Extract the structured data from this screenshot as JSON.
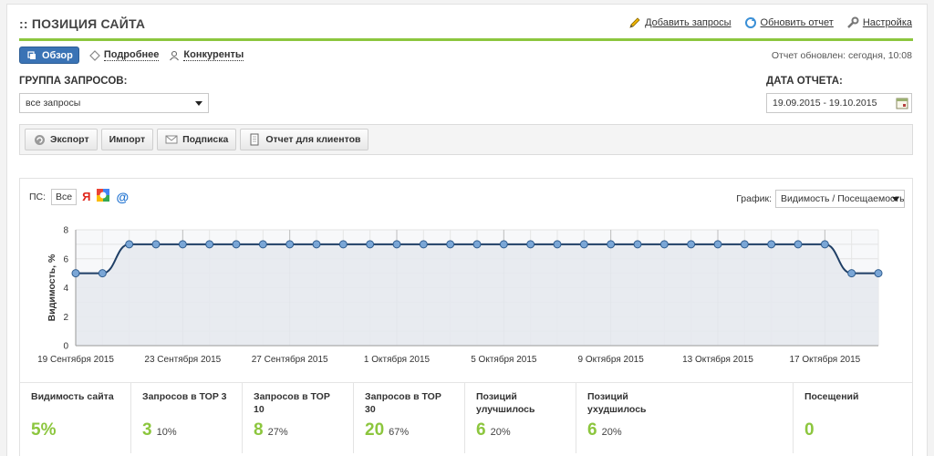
{
  "header": {
    "title": ":: ПОЗИЦИЯ САЙТА",
    "actions": [
      {
        "label": "Добавить запросы",
        "icon": "pencil-icon"
      },
      {
        "label": "Обновить отчет",
        "icon": "refresh-icon"
      },
      {
        "label": "Настройка",
        "icon": "wrench-icon"
      }
    ]
  },
  "tabs": [
    {
      "label": "Обзор",
      "active": true,
      "icon": "overview-icon"
    },
    {
      "label": "Подробнее",
      "active": false,
      "icon": "details-icon"
    },
    {
      "label": "Конкуренты",
      "active": false,
      "icon": "competitors-icon"
    }
  ],
  "report_updated": "Отчет обновлен: сегодня, 10:08",
  "filters": {
    "group_label": "ГРУППА ЗАПРОСОВ:",
    "group_value": "все запросы",
    "date_label": "ДАТА ОТЧЕТА:",
    "date_value": "19.09.2015 - 19.10.2015"
  },
  "toolbar": [
    {
      "label": "Экспорт",
      "icon": "export-icon"
    },
    {
      "label": "Импорт",
      "icon": ""
    },
    {
      "label": "Подписка",
      "icon": "mail-icon"
    },
    {
      "label": "Отчет для клиентов",
      "icon": "document-icon"
    }
  ],
  "chart_panel": {
    "ps_label": "ПС:",
    "ps_all": "Все",
    "engine_yandex": "Я",
    "engine_mail": "@",
    "graph_label": "График:",
    "graph_value": "Видимость / Посещаемость"
  },
  "chart_data": {
    "type": "line",
    "ylabel": "Видимость, %",
    "ylim": [
      0,
      8
    ],
    "yticks": [
      "0",
      "2",
      "4",
      "6",
      "8"
    ],
    "x_tick_labels": [
      "19 Сентября 2015",
      "23 Сентября 2015",
      "27 Сентября 2015",
      "1 Октября 2015",
      "5 Октября 2015",
      "9 Октября 2015",
      "13 Октября 2015",
      "17 Октября 2015"
    ],
    "series": [
      {
        "values": [
          5,
          5,
          7,
          7,
          7,
          7,
          7,
          7,
          7,
          7,
          7,
          7,
          7,
          7,
          7,
          7,
          7,
          7,
          7,
          7,
          7,
          7,
          7,
          7,
          7,
          7,
          7,
          7,
          7,
          5,
          5
        ],
        "color": "#1f3f66"
      }
    ],
    "grid": true
  },
  "stats": [
    {
      "label": "Видимость сайта",
      "value": "5%",
      "pct": ""
    },
    {
      "label": "Запросов в TOP 3",
      "value": "3",
      "pct": "10%"
    },
    {
      "label": "Запросов в TOP 10",
      "value": "8",
      "pct": "27%"
    },
    {
      "label": "Запросов в TOP 30",
      "value": "20",
      "pct": "67%"
    },
    {
      "label": "Позиций улучшилось",
      "value": "6",
      "pct": "20%"
    },
    {
      "label": "Позиций ухудшилось",
      "value": "6",
      "pct": "20%"
    },
    {
      "label": "Посещений",
      "value": "0",
      "pct": ""
    }
  ],
  "colors": {
    "accent": "#8cc63e",
    "tab_active": "#3a73b5",
    "line": "#1f3f66"
  }
}
